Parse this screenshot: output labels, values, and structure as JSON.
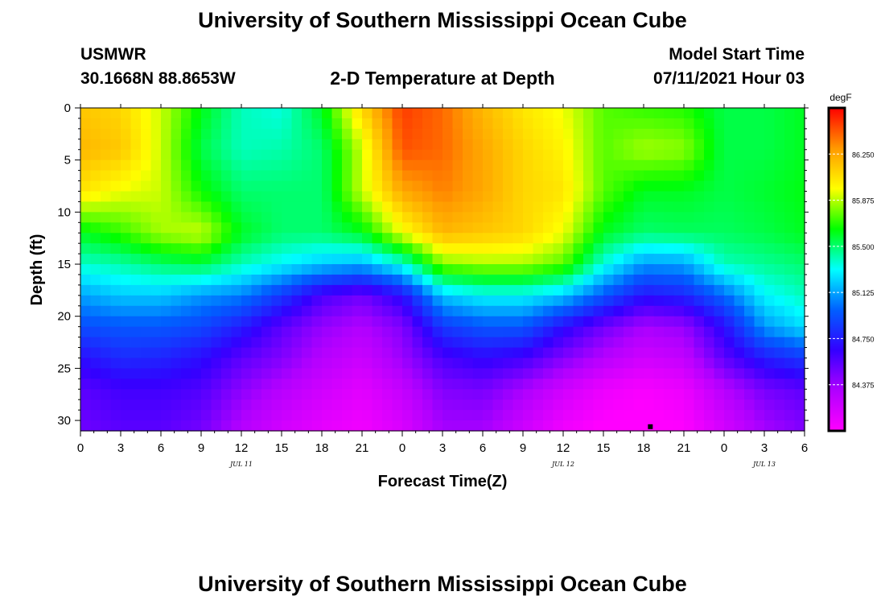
{
  "header": {
    "title": "University of Southern Mississippi Ocean Cube",
    "station_name": "USMWR",
    "station_coords": "30.1668N  88.8653W",
    "plot_title": "2-D Temperature at Depth",
    "model_start_label": "Model Start Time",
    "model_start_value": "07/11/2021 Hour 03"
  },
  "footer": {
    "title": "University of Southern Mississippi Ocean Cube"
  },
  "chart_data": {
    "type": "heatmap",
    "title": "2-D Temperature at Depth",
    "xlabel": "Forecast Time(Z)",
    "ylabel": "Depth (ft)",
    "x_range_hours": [
      0,
      54
    ],
    "y_range_ft": [
      0,
      31
    ],
    "x_ticks": [
      "0",
      "3",
      "6",
      "9",
      "12",
      "15",
      "18",
      "21",
      "0",
      "3",
      "6",
      "9",
      "12",
      "15",
      "18",
      "21",
      "0",
      "3",
      "6"
    ],
    "y_ticks": [
      0,
      5,
      10,
      15,
      20,
      25,
      30
    ],
    "date_labels": [
      {
        "hour": 12,
        "label": "JUL 11"
      },
      {
        "hour": 36,
        "label": "JUL 12"
      },
      {
        "hour": 51,
        "label": "JUL 13"
      }
    ],
    "colorbar": {
      "unit": "degF",
      "min": 84.0,
      "max": 86.625,
      "labels": [
        "86.250",
        "85.875",
        "85.500",
        "85.125",
        "84.750",
        "84.375"
      ],
      "colors": [
        "#ff00ff",
        "#b000ff",
        "#3300ff",
        "#0060ff",
        "#00ffff",
        "#00ff00",
        "#ffff00",
        "#ff9900",
        "#ff0000"
      ]
    },
    "marker": {
      "hour": 42.5,
      "depth_ft": 30.6
    },
    "depth_rows_ft": [
      0,
      4,
      8,
      12,
      15,
      18,
      21,
      24,
      27,
      31
    ],
    "time_cols_hours": [
      0,
      3,
      6,
      9,
      12,
      15,
      18,
      21,
      24,
      27,
      30,
      33,
      36,
      39,
      42,
      45,
      48,
      51,
      54
    ],
    "temperature_grid_degF": [
      [
        86.15,
        86.1,
        85.9,
        85.62,
        85.4,
        85.35,
        85.6,
        86.1,
        86.5,
        86.4,
        86.2,
        86.05,
        85.95,
        85.75,
        85.7,
        85.68,
        85.55,
        85.55,
        85.6
      ],
      [
        86.2,
        86.15,
        85.9,
        85.55,
        85.4,
        85.42,
        85.5,
        85.9,
        86.45,
        86.4,
        86.25,
        86.1,
        86.0,
        85.75,
        85.85,
        85.82,
        85.55,
        85.55,
        85.6
      ],
      [
        86.05,
        85.95,
        85.9,
        85.65,
        85.5,
        85.5,
        85.5,
        85.9,
        86.25,
        86.35,
        86.25,
        86.1,
        86.05,
        85.75,
        85.6,
        85.6,
        85.55,
        85.58,
        85.62
      ],
      [
        85.6,
        85.7,
        85.85,
        85.9,
        85.6,
        85.5,
        85.5,
        85.6,
        85.95,
        86.2,
        86.15,
        86.1,
        85.95,
        85.6,
        85.5,
        85.52,
        85.52,
        85.55,
        85.6
      ],
      [
        85.38,
        85.42,
        85.5,
        85.55,
        85.4,
        85.3,
        85.2,
        85.15,
        85.35,
        85.8,
        85.85,
        85.85,
        85.75,
        85.35,
        85.1,
        85.12,
        85.4,
        85.45,
        85.5
      ],
      [
        85.12,
        85.2,
        85.2,
        85.1,
        85.05,
        84.85,
        84.6,
        84.5,
        84.7,
        85.2,
        85.3,
        85.3,
        85.2,
        84.95,
        84.72,
        84.78,
        85.0,
        85.3,
        85.4
      ],
      [
        84.92,
        84.95,
        84.95,
        84.9,
        84.75,
        84.55,
        84.4,
        84.32,
        84.45,
        84.85,
        84.95,
        84.95,
        84.7,
        84.5,
        84.35,
        84.4,
        84.7,
        85.1,
        85.25
      ],
      [
        84.7,
        84.8,
        84.78,
        84.7,
        84.55,
        84.45,
        84.3,
        84.22,
        84.38,
        84.6,
        84.68,
        84.62,
        84.45,
        84.3,
        84.2,
        84.25,
        84.55,
        84.75,
        84.85
      ],
      [
        84.55,
        84.62,
        84.62,
        84.58,
        84.42,
        84.3,
        84.2,
        84.12,
        84.25,
        84.45,
        84.48,
        84.35,
        84.2,
        84.08,
        84.03,
        84.08,
        84.3,
        84.48,
        84.55
      ],
      [
        84.5,
        84.55,
        84.55,
        84.48,
        84.3,
        84.18,
        84.1,
        84.05,
        84.15,
        84.35,
        84.35,
        84.2,
        84.05,
        83.98,
        83.95,
        84.0,
        84.18,
        84.35,
        84.45
      ]
    ]
  }
}
